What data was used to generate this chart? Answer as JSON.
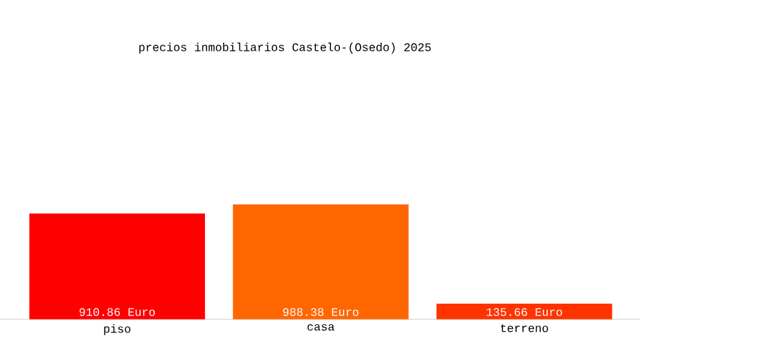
{
  "chart_data": {
    "type": "bar",
    "title": "precios inmobiliarios Castelo-(Osedo) 2025",
    "categories": [
      "piso",
      "casa",
      "terreno"
    ],
    "values": [
      910.86,
      988.38,
      135.66
    ],
    "value_labels": [
      "910.86 Euro",
      "988.38 Euro",
      "135.66 Euro"
    ],
    "colors": [
      "#ff0000",
      "#ff6600",
      "#ff3300"
    ]
  }
}
